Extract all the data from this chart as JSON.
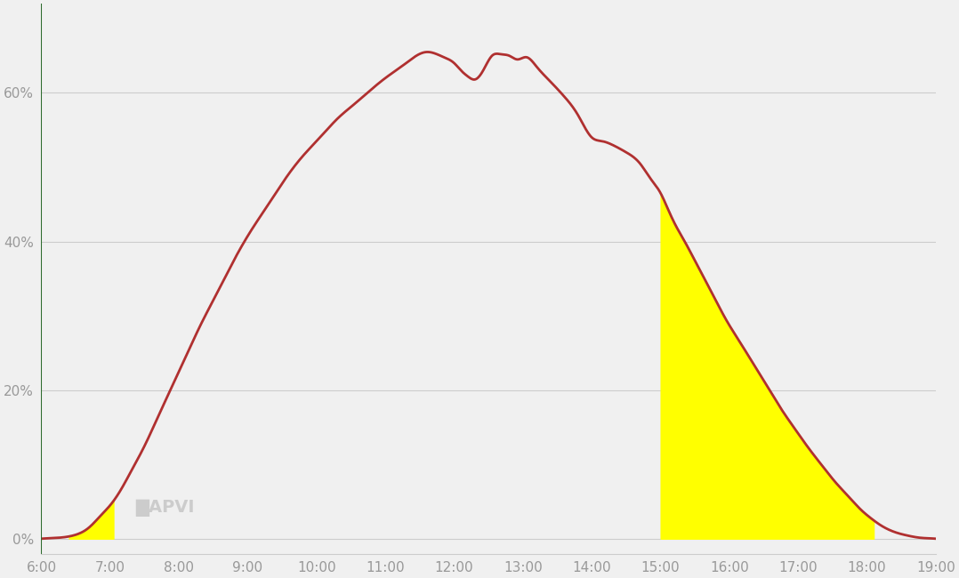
{
  "background_color": "#f0f0f0",
  "line_color": "#b03030",
  "line_width": 2.0,
  "fill_color": "#ffff00",
  "left_border_color": "#2d6b2d",
  "yticks": [
    0,
    20,
    40,
    60
  ],
  "ytick_labels": [
    "0%",
    "20%",
    "40%",
    "60%"
  ],
  "xtick_hours": [
    6,
    7,
    8,
    9,
    10,
    11,
    12,
    13,
    14,
    15,
    16,
    17,
    18,
    19
  ],
  "xtick_labels": [
    "6:00",
    "7:00",
    "8:00",
    "9:00",
    "10:00",
    "11:00",
    "12:00",
    "13:00",
    "14:00",
    "15:00",
    "16:00",
    "17:00",
    "18:00",
    "19:00"
  ],
  "ylim": [
    -2,
    72
  ],
  "xlim": [
    6.0,
    19.0
  ],
  "grid_color": "#cccccc",
  "tick_color": "#999999",
  "curve": {
    "x": [
      6.0,
      6.2,
      6.4,
      6.55,
      6.65,
      6.75,
      6.85,
      7.0,
      7.15,
      7.3,
      7.5,
      7.7,
      7.9,
      8.1,
      8.3,
      8.55,
      8.8,
      9.05,
      9.3,
      9.55,
      9.8,
      10.05,
      10.3,
      10.55,
      10.8,
      11.0,
      11.15,
      11.3,
      11.45,
      11.6,
      11.75,
      11.85,
      12.0,
      12.1,
      12.2,
      12.3,
      12.42,
      12.55,
      12.68,
      12.8,
      12.92,
      13.05,
      13.2,
      13.4,
      13.6,
      13.8,
      14.0,
      14.15,
      14.3,
      14.5,
      14.7,
      14.85,
      15.0,
      15.1,
      15.2,
      15.35,
      15.55,
      15.75,
      15.95,
      16.15,
      16.35,
      16.55,
      16.75,
      16.95,
      17.15,
      17.35,
      17.55,
      17.75,
      17.9,
      18.05,
      18.2,
      18.4,
      18.6,
      18.75,
      18.9,
      19.0
    ],
    "y": [
      0.0,
      0.1,
      0.3,
      0.7,
      1.2,
      2.0,
      3.0,
      4.5,
      6.5,
      9.0,
      12.5,
      16.5,
      20.5,
      24.5,
      28.5,
      33.0,
      37.5,
      41.5,
      45.0,
      48.5,
      51.5,
      54.0,
      56.5,
      58.5,
      60.5,
      62.0,
      63.0,
      64.0,
      65.0,
      65.5,
      65.2,
      64.8,
      64.0,
      63.0,
      62.2,
      61.8,
      63.0,
      65.0,
      65.2,
      65.0,
      64.5,
      64.8,
      63.5,
      61.5,
      59.5,
      57.0,
      54.0,
      53.5,
      53.0,
      52.0,
      50.5,
      48.5,
      46.5,
      44.5,
      42.5,
      40.0,
      36.5,
      33.0,
      29.5,
      26.5,
      23.5,
      20.5,
      17.5,
      14.8,
      12.2,
      9.8,
      7.5,
      5.5,
      4.0,
      2.8,
      1.8,
      0.9,
      0.4,
      0.15,
      0.05,
      0.0
    ]
  },
  "yellow_fill_1": {
    "x_start": 6.4,
    "x_end": 7.05
  },
  "yellow_fill_2": {
    "x_start": 15.0,
    "x_end": 18.1
  }
}
